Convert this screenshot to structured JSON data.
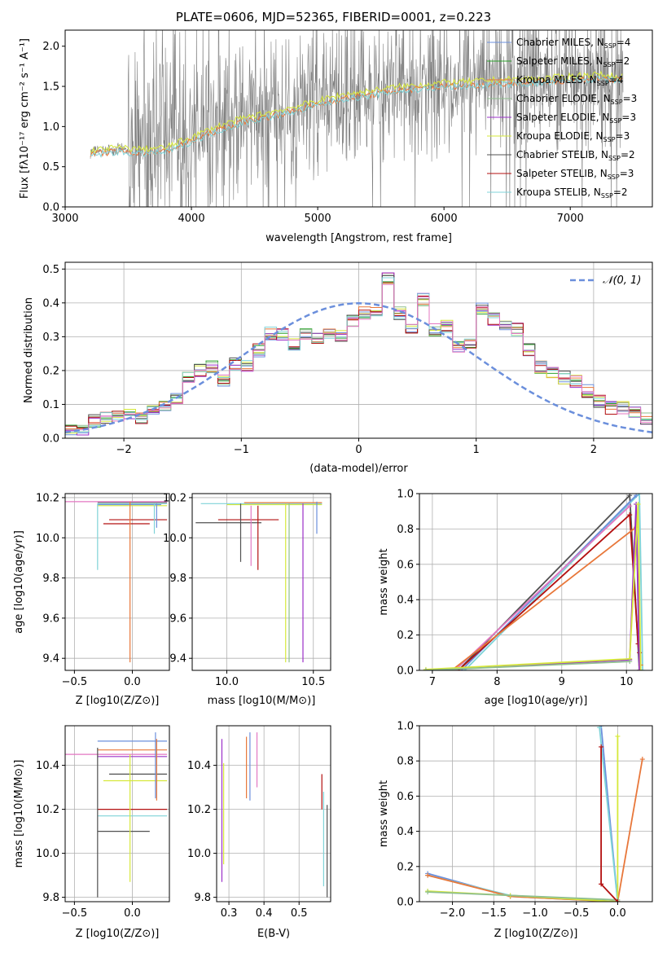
{
  "figure_title": "PLATE=0606, MJD=52365, FIBERID=0001, z=0.223",
  "palette": {
    "chabrier_miles": "#6b8fdc",
    "salpeter_miles": "#2ca02c",
    "kroupa_miles": "#e8773a",
    "chabrier_elodie": "#8fbf8f",
    "salpeter_elodie": "#9b30c9",
    "kroupa_elodie": "#d6e83a",
    "chabrier_stelib": "#505050",
    "salpeter_stelib": "#b31010",
    "kroupa_stelib": "#7fd3d8",
    "extra_pink": "#e377c2",
    "grid": "#b0b0b0",
    "data_grey": "#808080"
  },
  "chart_data": [
    {
      "id": "spectrum",
      "type": "line",
      "xlabel": "wavelength [Angstrom, rest frame]",
      "ylabel": "Flux [f_λ10^{-17} erg cm^{-2} s^{-1} A^{-1}]",
      "xlim": [
        3000,
        7650
      ],
      "ylim": [
        0,
        2.2
      ],
      "xticks": [
        3000,
        4000,
        5000,
        6000,
        7000
      ],
      "yticks": [
        0.0,
        0.5,
        1.0,
        1.5,
        2.0
      ],
      "legend": "top-right",
      "legend_entries": [
        {
          "label": "Chabrier MILES, N",
          "sub": "SSP",
          "suffix": "=4",
          "color": "#6b8fdc"
        },
        {
          "label": "Salpeter MILES, N",
          "sub": "SSP",
          "suffix": "=2",
          "color": "#2ca02c"
        },
        {
          "label": "Kroupa MILES, N",
          "sub": "SSP",
          "suffix": "=4",
          "color": "#e8773a"
        },
        {
          "label": "Chabrier ELODIE, N",
          "sub": "SSP",
          "suffix": "=3",
          "color": "#8fbf8f"
        },
        {
          "label": "Salpeter ELODIE, N",
          "sub": "SSP",
          "suffix": "=3",
          "color": "#9b30c9"
        },
        {
          "label": "Kroupa ELODIE, N",
          "sub": "SSP",
          "suffix": "=3",
          "color": "#d6e83a"
        },
        {
          "label": "Chabrier STELIB, N",
          "sub": "SSP",
          "suffix": "=2",
          "color": "#505050"
        },
        {
          "label": "Salpeter STELIB, N",
          "sub": "SSP",
          "suffix": "=3",
          "color": "#b31010"
        },
        {
          "label": "Kroupa STELIB, N",
          "sub": "SSP",
          "suffix": "=2",
          "color": "#7fd3d8"
        }
      ],
      "continuum": {
        "x": [
          3200,
          3400,
          3600,
          3800,
          4000,
          4200,
          4400,
          4600,
          4800,
          5000,
          5200,
          5400,
          5600,
          5800,
          6000,
          6200,
          6400,
          6600,
          6800,
          7000,
          7200,
          7400
        ],
        "y": [
          0.68,
          0.72,
          0.7,
          0.72,
          0.85,
          0.98,
          1.08,
          1.15,
          1.22,
          1.3,
          1.38,
          1.42,
          1.47,
          1.5,
          1.53,
          1.54,
          1.56,
          1.57,
          1.58,
          1.61,
          1.63,
          1.6
        ]
      }
    },
    {
      "id": "residuals",
      "type": "line",
      "xlabel": "(data-model)/error",
      "ylabel": "Normed distribution",
      "xlim": [
        -2.5,
        2.5
      ],
      "ylim": [
        0,
        0.52
      ],
      "xticks": [
        -2,
        -1,
        0,
        1,
        2
      ],
      "yticks": [
        0.0,
        0.1,
        0.2,
        0.3,
        0.4,
        0.5
      ],
      "legend": "top-right",
      "legend_label": "𝒩(0, 1)",
      "gaussian": {
        "mu": 0,
        "sigma": 1
      },
      "histogram": {
        "bin_edges_start": -2.5,
        "bin_width": 0.1,
        "values": [
          0.03,
          0.02,
          0.05,
          0.06,
          0.07,
          0.07,
          0.06,
          0.09,
          0.1,
          0.12,
          0.18,
          0.2,
          0.21,
          0.17,
          0.22,
          0.21,
          0.26,
          0.31,
          0.31,
          0.28,
          0.31,
          0.3,
          0.31,
          0.3,
          0.35,
          0.37,
          0.38,
          0.47,
          0.37,
          0.33,
          0.41,
          0.32,
          0.33,
          0.27,
          0.28,
          0.38,
          0.35,
          0.33,
          0.32,
          0.26,
          0.21,
          0.19,
          0.18,
          0.17,
          0.14,
          0.11,
          0.09,
          0.09,
          0.08,
          0.06,
          0.05,
          0.04
        ]
      }
    },
    {
      "id": "age_vs_Z",
      "type": "scatter",
      "xlabel": "Z [log10(Z/Z⊙)]",
      "ylabel": "age  [log10(age/yr)]",
      "xlim": [
        -0.58,
        0.32
      ],
      "ylim": [
        9.34,
        10.22
      ],
      "xticks": [
        -0.5,
        0.0
      ],
      "yticks": [
        9.4,
        9.6,
        9.8,
        10.0,
        10.2
      ]
    },
    {
      "id": "age_vs_mass",
      "type": "scatter",
      "xlabel": "mass [log10(M/M⊙)]",
      "ylabel": "",
      "xlim": [
        9.8,
        10.6
      ],
      "ylim": [
        9.34,
        10.22
      ],
      "xticks": [
        10.0,
        10.5
      ],
      "yticks": [
        9.4,
        9.6,
        9.8,
        10.0,
        10.2
      ]
    },
    {
      "id": "weight_vs_age",
      "type": "line",
      "xlabel": "age  [log10(age/yr)]",
      "ylabel": "mass weight",
      "xlim": [
        6.8,
        10.4
      ],
      "ylim": [
        0,
        1.0
      ],
      "xticks": [
        7,
        8,
        9,
        10
      ],
      "yticks": [
        0.0,
        0.2,
        0.4,
        0.6,
        0.8,
        1.0
      ]
    },
    {
      "id": "mass_vs_Z",
      "type": "scatter",
      "xlabel": "Z [log10(Z/Z⊙)]",
      "ylabel": "mass [log10(M/M⊙)]",
      "xlim": [
        -0.58,
        0.32
      ],
      "ylim": [
        9.78,
        10.58
      ],
      "xticks": [
        -0.5,
        0.0
      ],
      "yticks": [
        9.8,
        10.0,
        10.2,
        10.4
      ]
    },
    {
      "id": "mass_vs_ebv",
      "type": "scatter",
      "xlabel": "E(B-V)",
      "ylabel": "",
      "xlim": [
        0.265,
        0.59
      ],
      "ylim": [
        9.78,
        10.58
      ],
      "xticks": [
        0.3,
        0.4,
        0.5
      ],
      "yticks": [
        9.8,
        10.0,
        10.2,
        10.4
      ]
    },
    {
      "id": "weight_vs_Z",
      "type": "line",
      "xlabel": "Z [log10(Z/Z⊙)]",
      "ylabel": "mass weight",
      "xlim": [
        -2.4,
        0.42
      ],
      "ylim": [
        0,
        1.0
      ],
      "xticks": [
        -2.0,
        -1.5,
        -1.0,
        -0.5,
        0.0
      ],
      "yticks": [
        0.0,
        0.2,
        0.4,
        0.6,
        0.8,
        1.0
      ]
    }
  ]
}
